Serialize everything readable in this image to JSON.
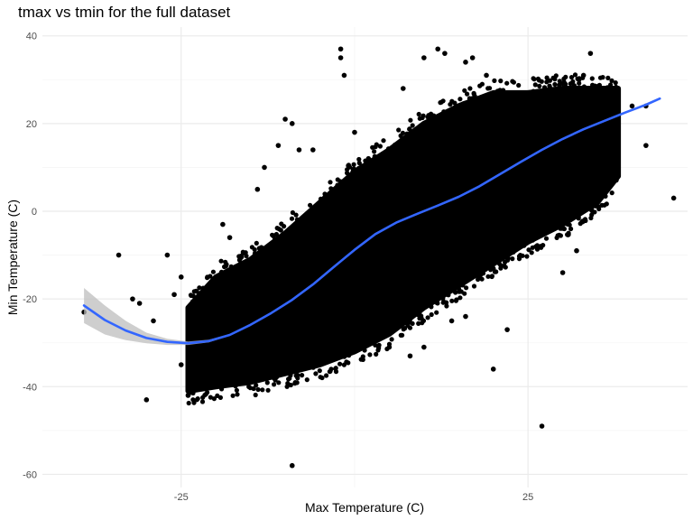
{
  "chart_data": {
    "type": "scatter",
    "title": "tmax vs tmin for the full dataset",
    "xlabel": "Max Temperature (C)",
    "ylabel": "Min Temperature (C)",
    "xlim": [
      -45,
      48
    ],
    "ylim": [
      -63,
      42
    ],
    "x_ticks": [
      -25,
      25
    ],
    "x_minor_ticks": [
      -50,
      0,
      50
    ],
    "y_ticks": [
      -60,
      -40,
      -20,
      0,
      20,
      40
    ],
    "y_minor_ticks": [
      -50,
      -30,
      -10,
      10,
      30
    ],
    "grid": true,
    "background": "#ffffff",
    "colors": {
      "points": "#000000",
      "smooth_line": "#3366ff",
      "ribbon": "#bdbdbd",
      "grid_major": "#ebebeb",
      "grid_minor": "#f5f5f5"
    },
    "point_cloud_band": {
      "x": [
        -24,
        -20,
        -15,
        -10,
        -5,
        0,
        5,
        10,
        15,
        20,
        25,
        30,
        35,
        38
      ],
      "upper": [
        -22,
        -15,
        -11,
        -5,
        2,
        9,
        14,
        20,
        24,
        27,
        27,
        28,
        28,
        28
      ],
      "lower": [
        -41,
        -40,
        -39,
        -37,
        -35,
        -32,
        -28,
        -22,
        -17,
        -12,
        -7,
        -3,
        2,
        8
      ]
    },
    "outliers": [
      {
        "x": -39,
        "y": -23
      },
      {
        "x": -34,
        "y": -10
      },
      {
        "x": -32,
        "y": -20
      },
      {
        "x": -31,
        "y": -21
      },
      {
        "x": -29,
        "y": -25
      },
      {
        "x": -30,
        "y": -43
      },
      {
        "x": -27,
        "y": -10
      },
      {
        "x": -26,
        "y": -19
      },
      {
        "x": -25,
        "y": -15
      },
      {
        "x": -25,
        "y": -35
      },
      {
        "x": -24,
        "y": -42
      },
      {
        "x": -20,
        "y": -26
      },
      {
        "x": -19,
        "y": -3
      },
      {
        "x": -18,
        "y": -6
      },
      {
        "x": -14,
        "y": 5
      },
      {
        "x": -13,
        "y": 10
      },
      {
        "x": -10,
        "y": 21
      },
      {
        "x": -9,
        "y": 20
      },
      {
        "x": -11,
        "y": 15
      },
      {
        "x": -8,
        "y": 14
      },
      {
        "x": -6,
        "y": 14
      },
      {
        "x": -9,
        "y": -58
      },
      {
        "x": -2,
        "y": 37
      },
      {
        "x": -2,
        "y": 35
      },
      {
        "x": -1.5,
        "y": 31
      },
      {
        "x": 0,
        "y": 18
      },
      {
        "x": 2,
        "y": 12
      },
      {
        "x": 7,
        "y": 28
      },
      {
        "x": 10,
        "y": 35
      },
      {
        "x": 12,
        "y": 37
      },
      {
        "x": 13,
        "y": 36
      },
      {
        "x": 16,
        "y": 34
      },
      {
        "x": 17,
        "y": 35
      },
      {
        "x": 19,
        "y": 31
      },
      {
        "x": 20,
        "y": -36
      },
      {
        "x": 22,
        "y": -27
      },
      {
        "x": 10,
        "y": -31
      },
      {
        "x": 8,
        "y": -33
      },
      {
        "x": 5,
        "y": -31
      },
      {
        "x": 14,
        "y": -25
      },
      {
        "x": 16,
        "y": -24
      },
      {
        "x": 27,
        "y": -49
      },
      {
        "x": 30,
        "y": -14
      },
      {
        "x": 32,
        "y": -9
      },
      {
        "x": 34,
        "y": 36
      },
      {
        "x": 33,
        "y": 31
      },
      {
        "x": 37,
        "y": 27
      },
      {
        "x": 38,
        "y": 23
      },
      {
        "x": 40,
        "y": 24
      },
      {
        "x": 42,
        "y": 24
      },
      {
        "x": 42,
        "y": 15
      },
      {
        "x": 46,
        "y": 3
      },
      {
        "x": 36,
        "y": 11
      }
    ],
    "smooth_series": {
      "x": [
        -39,
        -36,
        -33,
        -30,
        -27,
        -24,
        -21,
        -18,
        -15,
        -12,
        -9,
        -6,
        -3,
        0,
        3,
        6,
        9,
        12,
        15,
        18,
        21,
        24,
        27,
        30,
        33,
        36,
        39,
        42,
        44
      ],
      "y": [
        -21.5,
        -24.8,
        -27.2,
        -28.9,
        -29.8,
        -30.1,
        -29.6,
        -28.2,
        -25.9,
        -23.2,
        -20.2,
        -16.7,
        -12.7,
        -8.8,
        -5.2,
        -2.6,
        -0.6,
        1.3,
        3.3,
        5.7,
        8.5,
        11.3,
        14.0,
        16.5,
        18.7,
        20.6,
        22.5,
        24.3,
        25.7
      ]
    },
    "confidence_band": {
      "x": [
        -39,
        -36,
        -33,
        -30,
        -27,
        -24,
        -21,
        -18
      ],
      "upper": [
        -17.5,
        -21.5,
        -25.0,
        -27.7,
        -29.1,
        -29.7,
        -29.3,
        -28.0
      ],
      "lower": [
        -25.5,
        -28.1,
        -29.4,
        -30.1,
        -30.5,
        -30.5,
        -29.9,
        -28.4
      ]
    }
  }
}
